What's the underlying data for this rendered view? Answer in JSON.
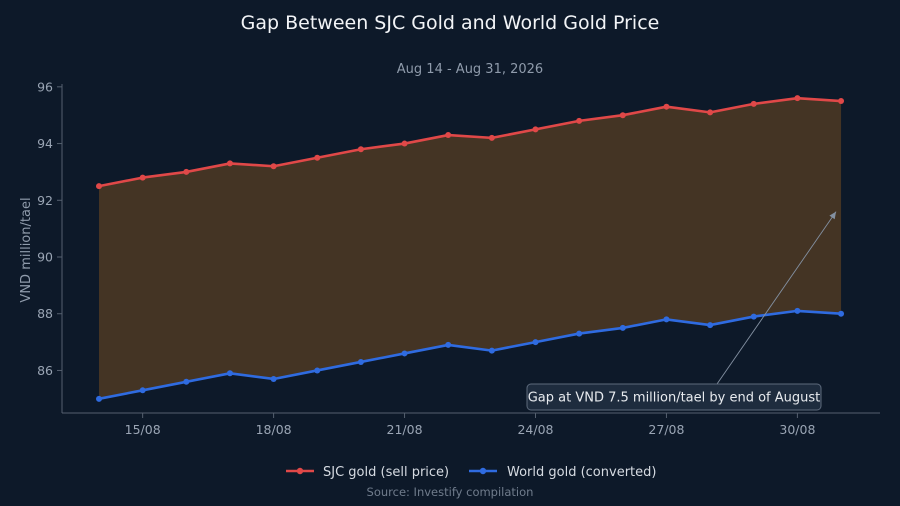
{
  "chart_data": {
    "type": "line",
    "title": "Gap Between SJC Gold and World Gold Price",
    "subtitle": "Aug 14 - Aug 31, 2026",
    "ylabel": "VND million/tael",
    "xlabel": "",
    "ylim": [
      84.5,
      96.1
    ],
    "yticks": [
      86,
      88,
      90,
      92,
      94,
      96
    ],
    "x": [
      "14/08",
      "15/08",
      "16/08",
      "17/08",
      "18/08",
      "19/08",
      "20/08",
      "21/08",
      "22/08",
      "23/08",
      "24/08",
      "25/08",
      "26/08",
      "27/08",
      "28/08",
      "29/08",
      "30/08",
      "31/08"
    ],
    "xtick_labels": [
      "15/08",
      "18/08",
      "21/08",
      "24/08",
      "27/08",
      "30/08"
    ],
    "series": [
      {
        "name": "SJC gold (sell price)",
        "color": "#e04848",
        "values": [
          92.5,
          92.8,
          93.0,
          93.3,
          93.2,
          93.5,
          93.8,
          94.0,
          94.3,
          94.2,
          94.5,
          94.8,
          95.0,
          95.3,
          95.1,
          95.4,
          95.6,
          95.5
        ]
      },
      {
        "name": "World gold (converted)",
        "color": "#2f6be0",
        "values": [
          85.0,
          85.3,
          85.6,
          85.9,
          85.7,
          86.0,
          86.3,
          86.6,
          86.9,
          86.7,
          87.0,
          87.3,
          87.5,
          87.8,
          87.6,
          87.9,
          88.1,
          88.0
        ]
      }
    ],
    "fill_between_color": "#5a3f22",
    "annotation": {
      "text": "Gap at VND 7.5 million/tael by end of August",
      "x": "31/08",
      "y": 91.6
    },
    "legend_position": "bottom-center",
    "grid": false,
    "source": "Source: Investify compilation"
  }
}
